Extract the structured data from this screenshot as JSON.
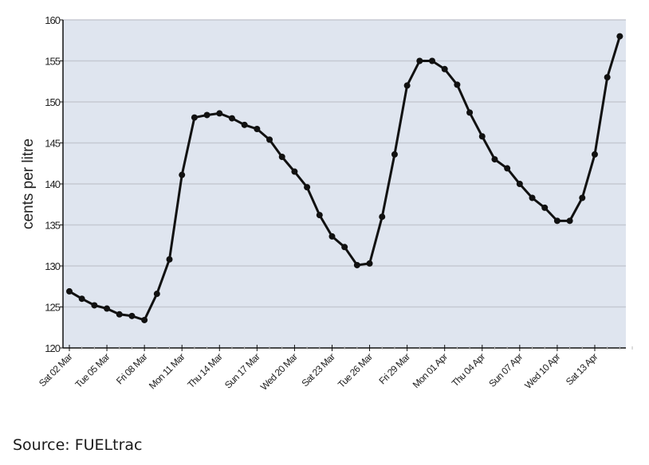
{
  "chart_data": {
    "type": "line",
    "title": "",
    "xlabel": "",
    "ylabel": "cents per litre",
    "ylim": [
      120,
      160
    ],
    "yticks": [
      120,
      125,
      130,
      135,
      140,
      145,
      150,
      155,
      160
    ],
    "grid": true,
    "legend": null,
    "xtick_labels": [
      "Sat 02 Mar",
      "Tue 05 Mar",
      "Fri 08 Mar",
      "Mon 11 Mar",
      "Thu 14 Mar",
      "Sun 17 Mar",
      "Wed 20 Mar",
      "Sat 23 Mar",
      "Tue 26 Mar",
      "Fri 29 Mar",
      "Mon 01 Apr",
      "Thu 04 Apr",
      "Sun 07 Apr",
      "Wed 10 Apr",
      "Sat 13 Apr"
    ],
    "x": [
      "02 Mar",
      "03 Mar",
      "04 Mar",
      "05 Mar",
      "06 Mar",
      "07 Mar",
      "08 Mar",
      "09 Mar",
      "10 Mar",
      "11 Mar",
      "12 Mar",
      "13 Mar",
      "14 Mar",
      "15 Mar",
      "16 Mar",
      "17 Mar",
      "18 Mar",
      "19 Mar",
      "20 Mar",
      "21 Mar",
      "22 Mar",
      "23 Mar",
      "24 Mar",
      "25 Mar",
      "26 Mar",
      "27 Mar",
      "28 Mar",
      "29 Mar",
      "30 Mar",
      "31 Mar",
      "01 Apr",
      "02 Apr",
      "03 Apr",
      "04 Apr",
      "05 Apr",
      "06 Apr",
      "07 Apr",
      "08 Apr",
      "09 Apr",
      "10 Apr",
      "11 Apr",
      "12 Apr",
      "13 Apr",
      "14 Apr",
      "15 Apr"
    ],
    "series": [
      {
        "name": "cents per litre",
        "values": [
          126.9,
          126.0,
          125.2,
          124.8,
          124.1,
          123.9,
          123.4,
          126.6,
          130.8,
          141.1,
          148.1,
          148.4,
          148.6,
          148.0,
          147.2,
          146.7,
          145.4,
          143.3,
          141.5,
          139.6,
          136.2,
          133.6,
          132.3,
          130.1,
          130.3,
          136.0,
          143.6,
          152.0,
          155.0,
          155.0,
          154.0,
          152.1,
          148.7,
          145.8,
          143.0,
          141.9,
          140.0,
          138.3,
          137.1,
          135.5,
          135.5,
          138.3,
          143.6,
          153.0,
          158.0
        ]
      }
    ],
    "colors": {
      "plot_bg": "#dfe5ef",
      "grid": "#c5c9d2",
      "line": "#111111",
      "axis": "#111111"
    }
  },
  "source": {
    "text": "Source: FUELtrac"
  }
}
